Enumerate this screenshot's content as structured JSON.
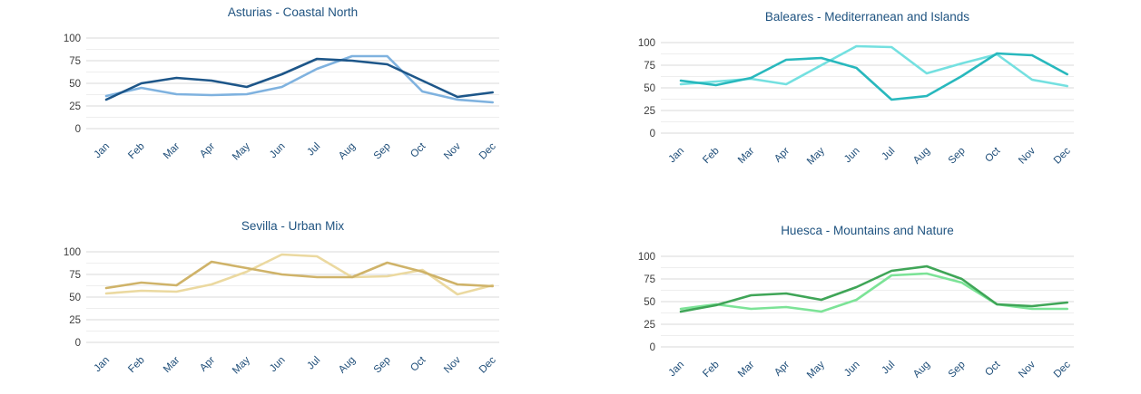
{
  "page": {
    "background": "#ffffff",
    "layout": "2x2 grid of line charts, no legend, no axis titles"
  },
  "chart_data": [
    {
      "type": "line",
      "title": "Asturias - Coastal North",
      "categories": [
        "Jan",
        "Feb",
        "Mar",
        "Apr",
        "May",
        "Jun",
        "Jul",
        "Aug",
        "Sep",
        "Oct",
        "Nov",
        "Dec"
      ],
      "series": [
        {
          "name": "line-1",
          "color": "#1d5689",
          "values": [
            32,
            50,
            56,
            53,
            46,
            60,
            77,
            75,
            71,
            53,
            35,
            40
          ]
        },
        {
          "name": "line-2",
          "color": "#7fb2df",
          "values": [
            36,
            45,
            38,
            37,
            38,
            46,
            66,
            80,
            80,
            41,
            32,
            29
          ]
        }
      ],
      "ylim": [
        0,
        100
      ],
      "yticks": [
        0,
        25,
        50,
        75,
        100
      ],
      "grid": "horizontal major and minor",
      "legend": "none"
    },
    {
      "type": "line",
      "title": "Baleares - Mediterranean and Islands",
      "categories": [
        "Jan",
        "Feb",
        "Mar",
        "Apr",
        "May",
        "Jun",
        "Jul",
        "Aug",
        "Sep",
        "Oct",
        "Nov",
        "Dec"
      ],
      "series": [
        {
          "name": "line-1",
          "color": "#28b8bd",
          "values": [
            58,
            53,
            61,
            81,
            83,
            72,
            37,
            41,
            63,
            88,
            86,
            65
          ]
        },
        {
          "name": "line-2",
          "color": "#74e0e0",
          "values": [
            54,
            57,
            60,
            54,
            75,
            96,
            95,
            66,
            77,
            87,
            59,
            52
          ]
        }
      ],
      "ylim": [
        0,
        100
      ],
      "yticks": [
        0,
        25,
        50,
        75,
        100
      ],
      "grid": "horizontal major and minor",
      "legend": "none"
    },
    {
      "type": "line",
      "title": "Sevilla - Urban Mix",
      "categories": [
        "Jan",
        "Feb",
        "Mar",
        "Apr",
        "May",
        "Jun",
        "Jul",
        "Aug",
        "Sep",
        "Oct",
        "Nov",
        "Dec"
      ],
      "series": [
        {
          "name": "line-1",
          "color": "#cfb369",
          "values": [
            60,
            66,
            63,
            89,
            82,
            75,
            72,
            72,
            88,
            78,
            64,
            62
          ]
        },
        {
          "name": "line-2",
          "color": "#ebd9a0",
          "values": [
            54,
            57,
            56,
            64,
            78,
            97,
            95,
            72,
            73,
            80,
            53,
            63
          ]
        }
      ],
      "ylim": [
        0,
        100
      ],
      "yticks": [
        0,
        25,
        50,
        75,
        100
      ],
      "grid": "horizontal major and minor",
      "legend": "none"
    },
    {
      "type": "line",
      "title": "Huesca - Mountains and Nature",
      "categories": [
        "Jan",
        "Feb",
        "Mar",
        "Apr",
        "May",
        "Jun",
        "Jul",
        "Aug",
        "Sep",
        "Oct",
        "Nov",
        "Dec"
      ],
      "series": [
        {
          "name": "line-1",
          "color": "#3fa557",
          "values": [
            39,
            46,
            57,
            59,
            52,
            66,
            84,
            89,
            75,
            47,
            45,
            49
          ]
        },
        {
          "name": "line-2",
          "color": "#7ce397",
          "values": [
            42,
            47,
            42,
            44,
            39,
            52,
            79,
            81,
            71,
            47,
            42,
            42
          ]
        }
      ],
      "ylim": [
        0,
        100
      ],
      "yticks": [
        0,
        25,
        50,
        75,
        100
      ],
      "grid": "horizontal major and minor",
      "legend": "none"
    }
  ],
  "styles": {
    "title_color": "#1f5380",
    "month_label_color": "#1f4e79",
    "ytick_label_color": "#3c3c3c",
    "grid_major_color": "#d8d8d8",
    "grid_minor_color": "#eeeeee"
  }
}
